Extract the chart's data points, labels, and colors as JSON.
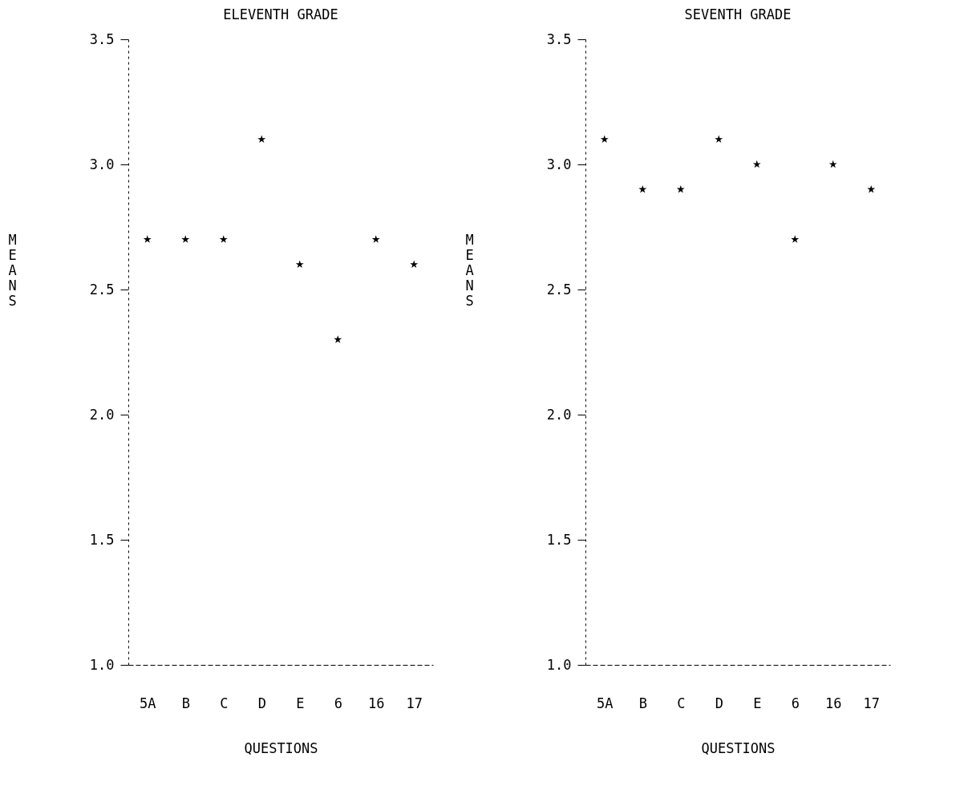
{
  "chart_data": [
    {
      "type": "scatter",
      "title": "ELEVENTH GRADE",
      "xlabel": "QUESTIONS",
      "ylabel": "MEANS",
      "categories": [
        "5A",
        "B",
        "C",
        "D",
        "E",
        "6",
        "16",
        "17"
      ],
      "values": [
        2.7,
        2.7,
        2.7,
        3.1,
        2.6,
        2.3,
        2.7,
        2.6
      ],
      "color": "#000000",
      "marker": "star",
      "ylim": [
        1.0,
        3.5
      ],
      "yticks": [
        {
          "value": 1.0,
          "label": "1.0"
        },
        {
          "value": 1.5,
          "label": "1.5"
        },
        {
          "value": 2.0,
          "label": "2.0"
        },
        {
          "value": 2.5,
          "label": "2.5"
        },
        {
          "value": 3.0,
          "label": "3.0"
        },
        {
          "value": 3.5,
          "label": "3.5"
        }
      ]
    },
    {
      "type": "scatter",
      "title": "SEVENTH GRADE",
      "xlabel": "QUESTIONS",
      "ylabel": "MEANS",
      "categories": [
        "5A",
        "B",
        "C",
        "D",
        "E",
        "6",
        "16",
        "17"
      ],
      "values": [
        3.1,
        2.9,
        2.9,
        3.1,
        3.0,
        2.7,
        3.0,
        2.9
      ],
      "color": "#000000",
      "marker": "star",
      "ylim": [
        1.0,
        3.5
      ],
      "yticks": [
        {
          "value": 1.0,
          "label": "1.0"
        },
        {
          "value": 1.5,
          "label": "1.5"
        },
        {
          "value": 2.0,
          "label": "2.0"
        },
        {
          "value": 2.5,
          "label": "2.5"
        },
        {
          "value": 3.0,
          "label": "3.0"
        },
        {
          "value": 3.5,
          "label": "3.5"
        }
      ]
    }
  ]
}
